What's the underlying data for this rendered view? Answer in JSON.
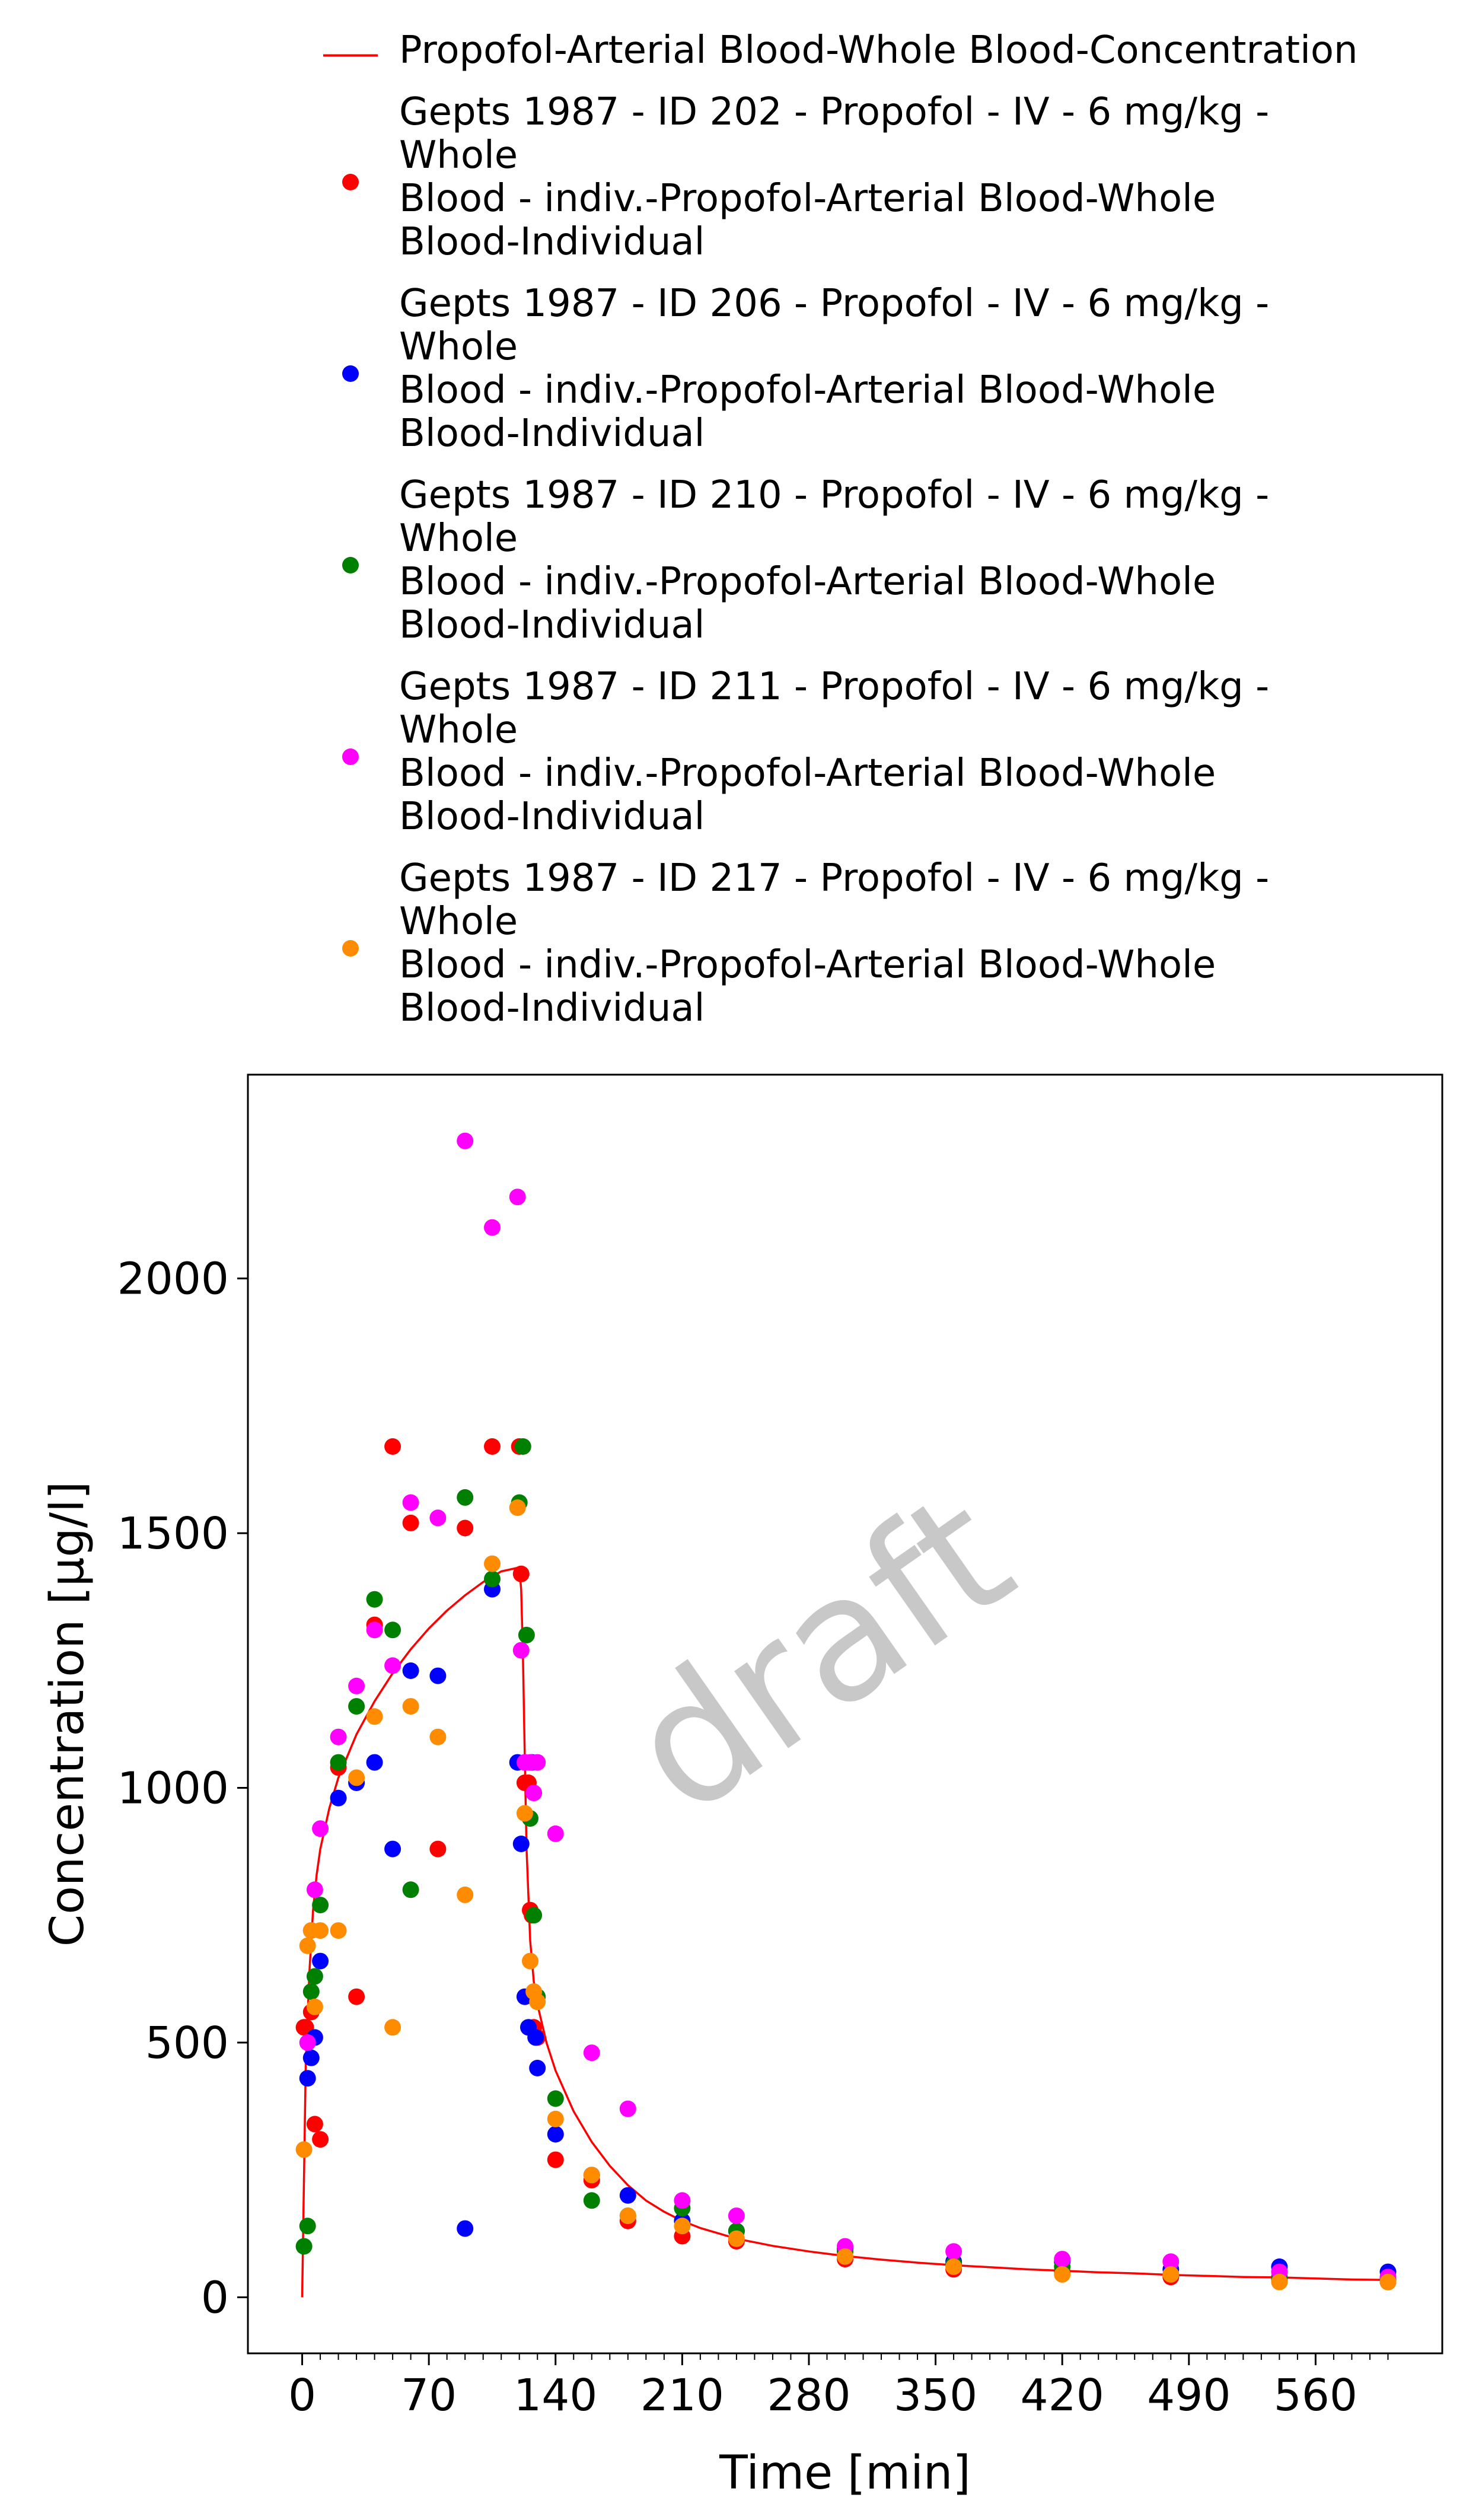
{
  "chart_data": {
    "type": "scatter",
    "title": "",
    "xlabel": "Time [min]",
    "ylabel": "Concentration [µg/l]",
    "xlim": [
      -30,
      630
    ],
    "ylim": [
      -110,
      2400
    ],
    "x_ticks": [
      0,
      70,
      140,
      210,
      280,
      350,
      420,
      490,
      560
    ],
    "y_ticks": [
      0,
      500,
      1000,
      1500,
      2000
    ],
    "watermark": "draft",
    "legend_position": "top",
    "grid": false,
    "series": [
      {
        "name": "Propofol-Arterial Blood-Whole Blood-Concentration",
        "kind": "line",
        "color": "#ff0000",
        "x": [
          0,
          2,
          4,
          6,
          8,
          10,
          15,
          20,
          30,
          40,
          50,
          60,
          70,
          80,
          90,
          100,
          110,
          119,
          120,
          121,
          122,
          123,
          124,
          126,
          128,
          130,
          135,
          140,
          150,
          160,
          170,
          180,
          190,
          200,
          210,
          220,
          240,
          260,
          280,
          300,
          320,
          340,
          360,
          380,
          400,
          420,
          440,
          460,
          480,
          500,
          520,
          540,
          560,
          580,
          600
        ],
        "y": [
          0,
          460,
          640,
          760,
          830,
          880,
          960,
          1020,
          1105,
          1170,
          1225,
          1272,
          1313,
          1348,
          1378,
          1404,
          1425,
          1432,
          1432,
          1390,
          1260,
          1060,
          880,
          700,
          620,
          575,
          500,
          445,
          365,
          305,
          258,
          220,
          190,
          168,
          150,
          136,
          115,
          101,
          90,
          81,
          74,
          68,
          63,
          59,
          55,
          52,
          49,
          47,
          44,
          42,
          40,
          39,
          37,
          35,
          34
        ]
      },
      {
        "name": "Gepts 1987 - ID 202 - Propofol - IV - 6 mg/kg - Whole Blood - indiv.-Propofol-Arterial Blood-Whole Blood-Individual",
        "kind": "scatter",
        "color": "#ff0000",
        "x": [
          1,
          2,
          5,
          7,
          10,
          20,
          30,
          40,
          50,
          60,
          75,
          90,
          105,
          120,
          121,
          123,
          125,
          126,
          127,
          128,
          130,
          140,
          160,
          180,
          210,
          240,
          300,
          360,
          420,
          480,
          540,
          600
        ],
        "y": [
          530,
          530,
          560,
          340,
          310,
          1040,
          590,
          1320,
          1670,
          1520,
          880,
          1510,
          1670,
          1670,
          1420,
          1010,
          1010,
          760,
          750,
          530,
          510,
          270,
          230,
          150,
          120,
          110,
          75,
          55,
          50,
          40,
          35,
          30
        ]
      },
      {
        "name": "Gepts 1987 - ID 206 - Propofol - IV - 6 mg/kg - Whole Blood - indiv.-Propofol-Arterial Blood-Whole Blood-Individual",
        "kind": "scatter",
        "color": "#0000ff",
        "x": [
          3,
          5,
          7,
          10,
          20,
          30,
          40,
          50,
          60,
          75,
          90,
          105,
          119,
          121,
          123,
          125,
          127,
          129,
          130,
          140,
          160,
          180,
          210,
          240,
          300,
          360,
          420,
          480,
          540,
          600
        ],
        "y": [
          430,
          470,
          510,
          660,
          980,
          1010,
          1050,
          880,
          1230,
          1220,
          135,
          1390,
          1050,
          890,
          590,
          530,
          1050,
          510,
          450,
          320,
          240,
          200,
          150,
          130,
          95,
          70,
          70,
          55,
          60,
          50
        ]
      },
      {
        "name": "Gepts 1987 - ID 210 - Propofol - IV - 6 mg/kg - Whole Blood - indiv.-Propofol-Arterial Blood-Whole Blood-Individual",
        "kind": "scatter",
        "color": "#008000",
        "x": [
          1,
          3,
          5,
          7,
          10,
          20,
          30,
          40,
          50,
          60,
          90,
          105,
          120,
          122,
          124,
          126,
          128,
          130,
          140,
          160,
          180,
          210,
          240,
          300,
          360,
          420,
          480,
          540,
          600
        ],
        "y": [
          100,
          140,
          600,
          630,
          770,
          1050,
          1160,
          1370,
          1310,
          800,
          1570,
          1410,
          1560,
          1670,
          1300,
          940,
          750,
          590,
          390,
          190,
          160,
          175,
          130,
          90,
          65,
          60,
          45,
          40,
          35
        ]
      },
      {
        "name": "Gepts 1987 - ID 211 - Propofol - IV - 6 mg/kg - Whole Blood - indiv.-Propofol-Arterial Blood-Whole Blood-Individual",
        "kind": "scatter",
        "color": "#ff00ff",
        "x": [
          3,
          5,
          7,
          10,
          20,
          30,
          40,
          50,
          60,
          75,
          90,
          105,
          119,
          121,
          123,
          126,
          128,
          130,
          140,
          160,
          180,
          210,
          240,
          300,
          360,
          420,
          480,
          540,
          600
        ],
        "y": [
          500,
          720,
          800,
          920,
          1100,
          1200,
          1310,
          1240,
          1560,
          1530,
          2270,
          2100,
          2160,
          1270,
          1050,
          1050,
          990,
          1050,
          910,
          480,
          370,
          190,
          160,
          100,
          90,
          75,
          70,
          50,
          40
        ]
      },
      {
        "name": "Gepts 1987 - ID 217 - Propofol - IV - 6 mg/kg - Whole Blood - indiv.-Propofol-Arterial Blood-Whole Blood-Individual",
        "kind": "scatter",
        "color": "#ff8c00",
        "x": [
          1,
          3,
          5,
          7,
          10,
          20,
          30,
          40,
          50,
          60,
          75,
          90,
          105,
          119,
          123,
          126,
          128,
          130,
          140,
          160,
          180,
          210,
          240,
          300,
          360,
          420,
          480,
          540,
          600
        ],
        "y": [
          290,
          690,
          720,
          570,
          720,
          720,
          1020,
          1140,
          530,
          1160,
          1100,
          790,
          1440,
          1550,
          950,
          660,
          600,
          580,
          350,
          240,
          160,
          140,
          115,
          80,
          60,
          45,
          45,
          30,
          30
        ]
      }
    ],
    "legend": [
      {
        "lines": [
          "Propofol-Arterial Blood-Whole Blood-Concentration"
        ]
      },
      {
        "lines": [
          "Gepts 1987 - ID 202 - Propofol - IV - 6 mg/kg -",
          "Whole",
          "Blood - indiv.-Propofol-Arterial Blood-Whole",
          "Blood-Individual"
        ]
      },
      {
        "lines": [
          "Gepts 1987 - ID 206 - Propofol - IV - 6 mg/kg -",
          "Whole",
          "Blood - indiv.-Propofol-Arterial Blood-Whole",
          "Blood-Individual"
        ]
      },
      {
        "lines": [
          "Gepts 1987 - ID 210 - Propofol - IV - 6 mg/kg -",
          "Whole",
          "Blood - indiv.-Propofol-Arterial Blood-Whole",
          "Blood-Individual"
        ]
      },
      {
        "lines": [
          "Gepts 1987 - ID 211 - Propofol - IV - 6 mg/kg -",
          "Whole",
          "Blood - indiv.-Propofol-Arterial Blood-Whole",
          "Blood-Individual"
        ]
      },
      {
        "lines": [
          "Gepts 1987 - ID 217 - Propofol - IV - 6 mg/kg -",
          "Whole",
          "Blood - indiv.-Propofol-Arterial Blood-Whole",
          "Blood-Individual"
        ]
      }
    ]
  }
}
